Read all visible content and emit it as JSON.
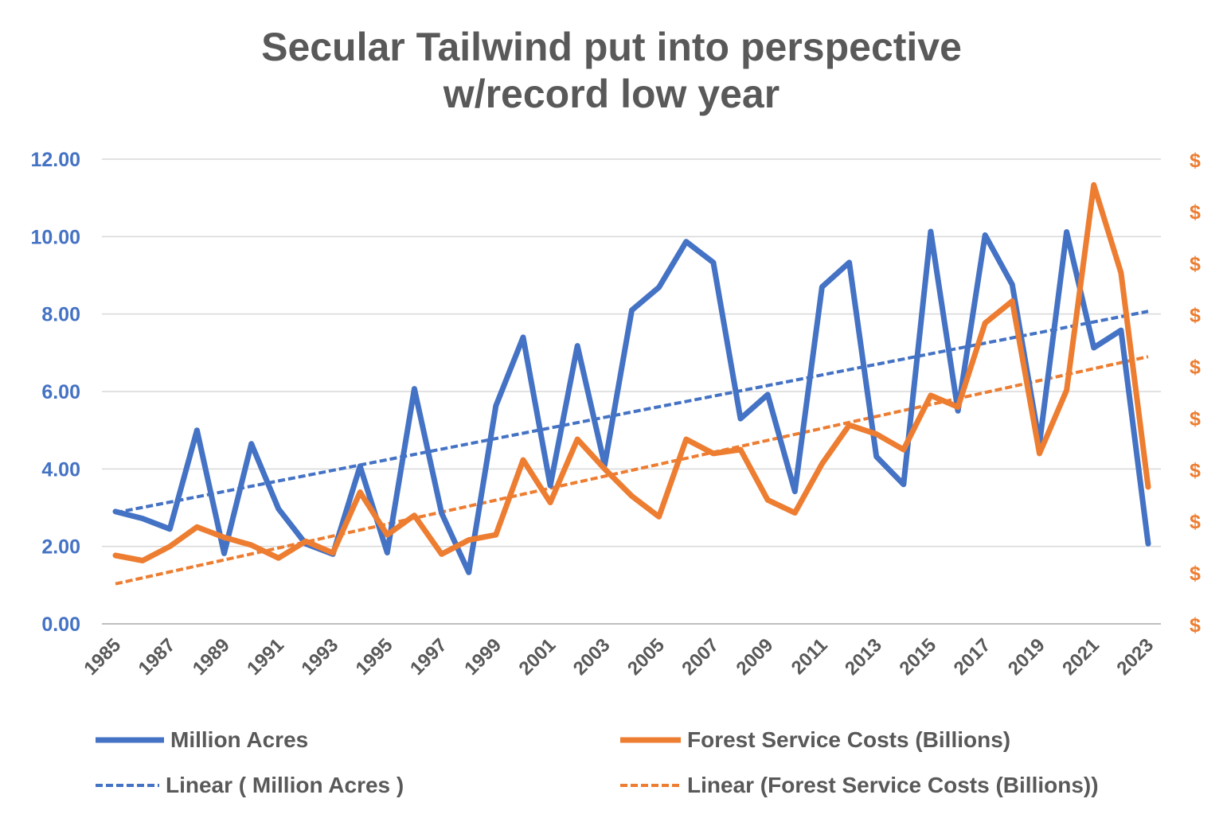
{
  "chart_data": {
    "type": "line",
    "title": [
      "Secular Tailwind put into perspective",
      "w/record low year"
    ],
    "x": [
      1985,
      1986,
      1987,
      1988,
      1989,
      1990,
      1991,
      1992,
      1993,
      1994,
      1995,
      1996,
      1997,
      1998,
      1999,
      2000,
      2001,
      2002,
      2003,
      2004,
      2005,
      2006,
      2007,
      2008,
      2009,
      2010,
      2011,
      2012,
      2013,
      2014,
      2015,
      2016,
      2017,
      2018,
      2019,
      2020,
      2021,
      2022,
      2023
    ],
    "x_tick_labels": [
      "1985",
      "1987",
      "1989",
      "1991",
      "1993",
      "1995",
      "1997",
      "1999",
      "2001",
      "2003",
      "2005",
      "2007",
      "2009",
      "2011",
      "2013",
      "2015",
      "2017",
      "2019",
      "2021",
      "2023"
    ],
    "left_axis": {
      "ylim": [
        0,
        12
      ],
      "ticks": [
        "0.00",
        "2.00",
        "4.00",
        "6.00",
        "8.00",
        "10.00",
        "12.00"
      ],
      "tick_color": "#4472C4"
    },
    "right_axis": {
      "ylim": [
        0,
        3.6
      ],
      "ticks": [
        "$",
        "$",
        "$",
        "$",
        "$",
        "$",
        "$",
        "$",
        "$",
        "$"
      ],
      "tick_color": "#ED7D31"
    },
    "gridlines": true,
    "series": [
      {
        "name": "Million Acres",
        "axis": "left",
        "color": "#4472C4",
        "style": "solid",
        "values": [
          2.9,
          2.72,
          2.45,
          5.0,
          1.82,
          4.65,
          2.97,
          2.07,
          1.8,
          4.07,
          1.84,
          6.07,
          2.86,
          1.33,
          5.63,
          7.4,
          3.57,
          7.18,
          4.1,
          8.1,
          8.69,
          9.87,
          9.33,
          5.3,
          5.92,
          3.42,
          8.7,
          9.33,
          4.32,
          3.6,
          10.13,
          5.5,
          10.04,
          8.76,
          4.66,
          10.12,
          7.13,
          7.58,
          2.07
        ]
      },
      {
        "name": "Forest Service Costs (Billions)",
        "axis": "right",
        "color": "#ED7D31",
        "style": "solid",
        "values": [
          0.53,
          0.49,
          0.6,
          0.75,
          0.67,
          0.61,
          0.51,
          0.64,
          0.55,
          1.02,
          0.69,
          0.84,
          0.54,
          0.65,
          0.69,
          1.27,
          0.94,
          1.43,
          1.2,
          0.99,
          0.83,
          1.43,
          1.32,
          1.35,
          0.96,
          0.86,
          1.24,
          1.54,
          1.47,
          1.35,
          1.77,
          1.68,
          2.33,
          2.5,
          1.32,
          1.81,
          3.4,
          2.72,
          1.06
        ]
      },
      {
        "name": "Linear ( Million Acres )",
        "axis": "left",
        "color": "#4472C4",
        "style": "dashed",
        "trend_start": 2.87,
        "trend_end": 8.07
      },
      {
        "name": "Linear (Forest Service Costs (Billions))",
        "axis": "right",
        "color": "#ED7D31",
        "style": "dashed",
        "trend_start": 0.31,
        "trend_end": 2.07
      }
    ],
    "legend_position": "bottom"
  },
  "legend": {
    "million_acres": "Million Acres",
    "forest_costs": "Forest Service Costs (Billions)",
    "linear_acres": "Linear ( Million Acres )",
    "linear_costs": "Linear (Forest Service Costs (Billions))"
  }
}
